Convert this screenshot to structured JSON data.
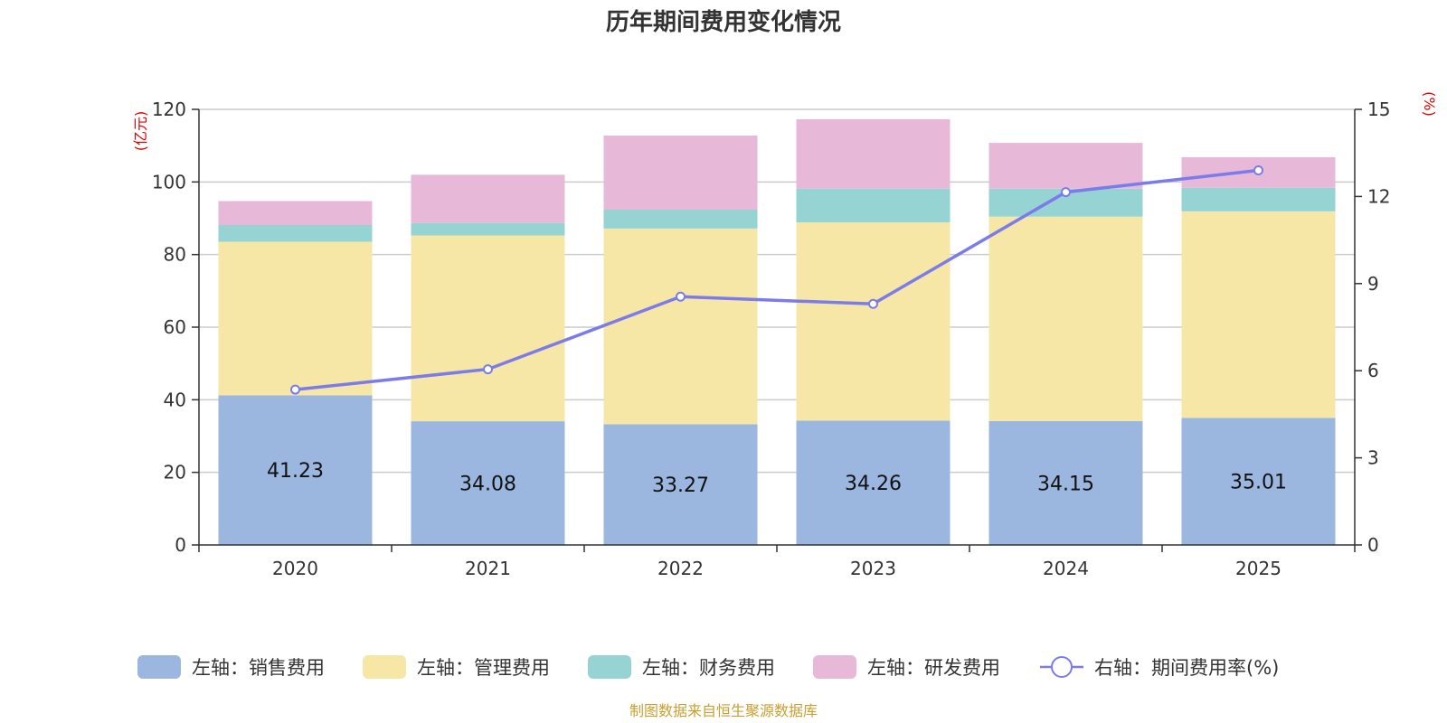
{
  "chart_data": {
    "type": "bar",
    "stacked": true,
    "title": "历年期间费用变化情况",
    "categories": [
      "2020",
      "2021",
      "2022",
      "2023",
      "2024",
      "2025"
    ],
    "series": [
      {
        "name": "左轴：销售费用",
        "axis": "left",
        "color": "#9bb7e0",
        "values": [
          41.23,
          34.08,
          33.27,
          34.26,
          34.15,
          35.01
        ]
      },
      {
        "name": "左轴：管理费用",
        "axis": "left",
        "color": "#f7e7a7",
        "values": [
          42.3,
          51.2,
          53.9,
          54.6,
          56.3,
          56.9
        ]
      },
      {
        "name": "左轴：财务费用",
        "axis": "left",
        "color": "#96d3d3",
        "values": [
          4.6,
          3.4,
          5.2,
          9.3,
          7.7,
          6.5
        ]
      },
      {
        "name": "左轴：研发费用",
        "axis": "left",
        "color": "#e8b8d8",
        "values": [
          6.6,
          13.3,
          20.4,
          19.1,
          12.6,
          8.4
        ]
      },
      {
        "name": "右轴：期间费用率(%)",
        "axis": "right",
        "type": "line",
        "color": "#7b7bea",
        "values": [
          5.35,
          6.05,
          8.55,
          8.3,
          12.15,
          12.9
        ]
      }
    ],
    "left_axis": {
      "unit": "(亿元)",
      "min": 0,
      "max": 120,
      "ticks": [
        0,
        20,
        40,
        60,
        80,
        100,
        120
      ]
    },
    "right_axis": {
      "unit": "(%)",
      "min": 0,
      "max": 15,
      "ticks": [
        0,
        3,
        6,
        9,
        12,
        15
      ]
    },
    "data_labels_series": "左轴：销售费用",
    "legend_position": "bottom",
    "grid": true,
    "unit_color": "#e00000",
    "source_text": "制图数据来自恒生聚源数据库",
    "source_color": "#c8a030"
  }
}
